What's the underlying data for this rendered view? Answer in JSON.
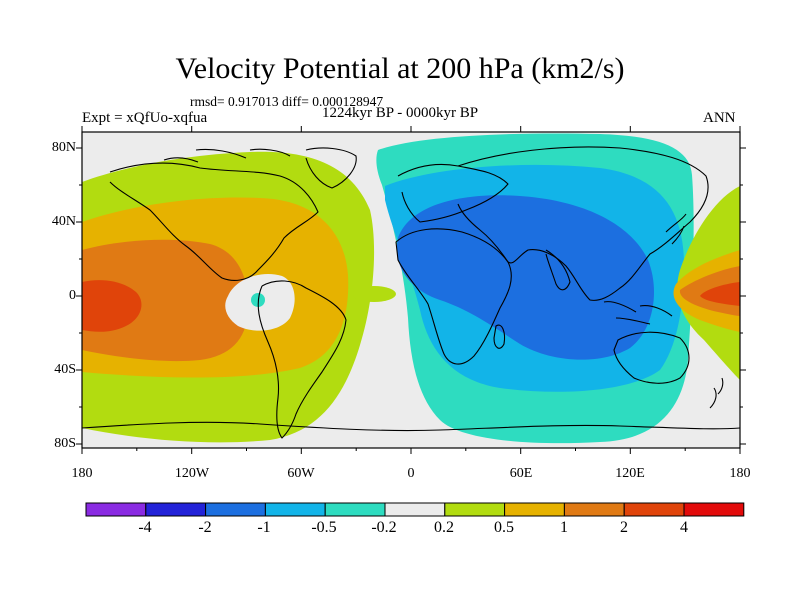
{
  "title": "Velocity Potential at 200 hPa (km2/s)",
  "stats": "rmsd= 0.917013 diff= 0.000128947",
  "left_label": "Expt = xQfUo-xqfua",
  "center_label": "1224kyr BP - 0000kyr BP",
  "right_label": "ANN",
  "lat_labels": [
    "80N",
    "40N",
    "0",
    "40S",
    "80S"
  ],
  "lon_labels": [
    "180",
    "120W",
    "60W",
    "0",
    "60E",
    "120E",
    "180"
  ],
  "colorbar": {
    "colors": [
      "#8a2be2",
      "#2323d8",
      "#1c6fe0",
      "#12b4e8",
      "#2edcc0",
      "#ececec",
      "#b2dc10",
      "#e6b200",
      "#e07a14",
      "#e0440a",
      "#e20a0a"
    ],
    "labels": [
      "-4",
      "-2",
      "-1",
      "-0.5",
      "-0.2",
      "0.2",
      "0.5",
      "1",
      "2",
      "4"
    ]
  },
  "palette": {
    "ocean_background": "#ececec",
    "cyan": "#2edcc0",
    "light_blue": "#12b4e8",
    "blue": "#1c6fe0",
    "yellow_green": "#b2dc10",
    "orange_yellow": "#e6b200",
    "orange": "#e07a14",
    "red_orange": "#e0440a"
  }
}
